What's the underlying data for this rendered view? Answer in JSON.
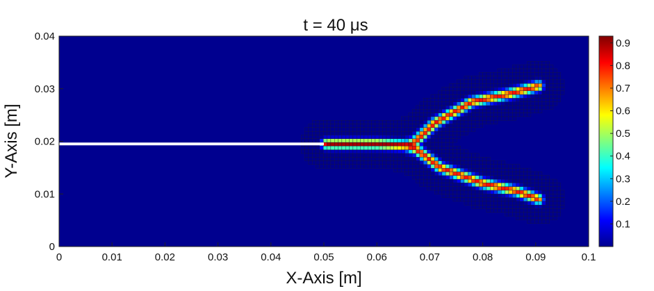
{
  "chart_data": {
    "type": "heatmap",
    "title": "t = 40  μs",
    "xlabel": "X-Axis [m]",
    "ylabel": "Y-Axis [m]",
    "xlim": [
      0,
      0.1
    ],
    "ylim": [
      0,
      0.04
    ],
    "x_ticks": [
      "0",
      "0.01",
      "0.02",
      "0.03",
      "0.04",
      "0.05",
      "0.06",
      "0.07",
      "0.08",
      "0.09",
      "0.1"
    ],
    "y_ticks": [
      "0",
      "0.01",
      "0.02",
      "0.03",
      "0.04"
    ],
    "colorbar": {
      "colormap": "jet",
      "range": [
        0,
        0.93
      ],
      "ticks": [
        "0.1",
        "0.2",
        "0.3",
        "0.4",
        "0.5",
        "0.6",
        "0.7",
        "0.8",
        "0.9"
      ]
    },
    "background_color": "#00008f",
    "initial_crack": {
      "x": [
        0,
        0.05
      ],
      "y": 0.0195,
      "color": "#ffffff"
    },
    "damage_paths": [
      {
        "name": "main crack",
        "points": [
          [
            0.0505,
            0.0195
          ],
          [
            0.06,
            0.0195
          ],
          [
            0.0665,
            0.0192
          ]
        ],
        "peak": 0.9
      },
      {
        "name": "upper branch",
        "points": [
          [
            0.0665,
            0.0192
          ],
          [
            0.071,
            0.0235
          ],
          [
            0.078,
            0.0275
          ],
          [
            0.085,
            0.029
          ],
          [
            0.0905,
            0.0305
          ]
        ],
        "peak": 0.8
      },
      {
        "name": "lower branch",
        "points": [
          [
            0.0665,
            0.0192
          ],
          [
            0.072,
            0.015
          ],
          [
            0.08,
            0.012
          ],
          [
            0.0865,
            0.0105
          ],
          [
            0.0905,
            0.009
          ]
        ],
        "peak": 0.8
      }
    ],
    "grid": false
  }
}
